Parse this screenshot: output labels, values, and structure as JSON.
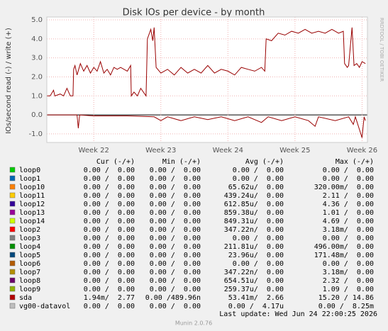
{
  "chart_data": {
    "type": "line",
    "title": "Disk IOs per device - by month",
    "ylabel": "IOs/second read (-) / write (+)",
    "side_text": "RRDTOOL / TOBI OETIKER",
    "xlim": [
      21.3,
      26.08
    ],
    "xticks": [
      {
        "value": 22,
        "label": "Week 22"
      },
      {
        "value": 23,
        "label": "Week 23"
      },
      {
        "value": 24,
        "label": "Week 24"
      },
      {
        "value": 25,
        "label": "Week 25"
      },
      {
        "value": 26,
        "label": "Week 26"
      }
    ],
    "ylim": [
      -1.45,
      5.15
    ],
    "yticks": [
      {
        "value": -1,
        "label": "-1.0"
      },
      {
        "value": 0,
        "label": "0.0"
      },
      {
        "value": 1,
        "label": "1.0"
      },
      {
        "value": 2,
        "label": "2.0"
      },
      {
        "value": 3,
        "label": "3.0"
      },
      {
        "value": 4,
        "label": "4.0"
      },
      {
        "value": 5,
        "label": "5.0"
      }
    ],
    "grid": true,
    "series": [
      {
        "color": "#990000",
        "x": [
          21.3,
          21.35,
          21.4,
          21.42,
          21.5,
          21.55,
          21.6,
          21.65,
          21.69,
          21.7,
          21.72,
          21.75,
          21.8,
          21.85,
          21.9,
          21.95,
          22.0,
          22.05,
          22.1,
          22.15,
          22.2,
          22.25,
          22.3,
          22.35,
          22.4,
          22.5,
          22.55,
          22.56,
          22.6,
          22.65,
          22.7,
          22.78,
          22.8,
          22.85,
          22.88,
          22.9,
          22.93,
          23.0,
          23.1,
          23.2,
          23.3,
          23.4,
          23.5,
          23.6,
          23.7,
          23.8,
          23.9,
          24.0,
          24.1,
          24.2,
          24.3,
          24.4,
          24.5,
          24.55,
          24.57,
          24.65,
          24.75,
          24.85,
          24.95,
          25.05,
          25.15,
          25.25,
          25.35,
          25.45,
          25.55,
          25.65,
          25.72,
          25.74,
          25.78,
          25.8,
          25.85,
          25.88,
          25.92,
          25.96,
          26.0,
          26.05
        ],
        "values": [
          1.0,
          1.0,
          1.3,
          1.0,
          1.1,
          1.0,
          1.4,
          1.0,
          1.0,
          2.4,
          2.6,
          2.1,
          2.7,
          2.3,
          2.6,
          2.2,
          2.5,
          2.3,
          2.8,
          2.2,
          2.4,
          2.1,
          2.5,
          2.4,
          2.5,
          2.3,
          2.6,
          1.0,
          1.2,
          1.0,
          1.4,
          1.0,
          4.0,
          4.5,
          3.9,
          4.6,
          2.5,
          2.2,
          2.4,
          2.1,
          2.5,
          2.2,
          2.4,
          2.2,
          2.6,
          2.2,
          2.4,
          2.3,
          2.1,
          2.5,
          2.4,
          2.3,
          2.5,
          2.3,
          4.0,
          3.9,
          4.3,
          4.2,
          4.4,
          4.3,
          4.5,
          4.3,
          4.4,
          4.3,
          4.5,
          4.3,
          4.4,
          2.7,
          2.5,
          2.6,
          4.6,
          2.6,
          2.7,
          2.5,
          2.8,
          2.7
        ]
      },
      {
        "color": "#990000",
        "x": [
          21.3,
          21.75,
          21.77,
          21.79,
          22.0,
          22.5,
          22.9,
          23.0,
          23.1,
          23.3,
          23.5,
          23.7,
          23.9,
          24.1,
          24.3,
          24.5,
          24.6,
          24.8,
          25.0,
          25.2,
          25.3,
          25.35,
          25.6,
          25.8,
          25.87,
          25.9,
          26.0,
          26.03,
          26.05
        ],
        "values": [
          0,
          0,
          -0.7,
          0,
          -0.05,
          -0.05,
          -0.1,
          -0.3,
          -0.1,
          -0.3,
          -0.1,
          -0.25,
          -0.1,
          -0.3,
          -0.1,
          -0.4,
          -0.1,
          -0.3,
          -0.1,
          -0.3,
          -0.6,
          -0.1,
          -0.3,
          -0.1,
          -0.5,
          -0.1,
          -1.2,
          -0.1,
          -0.3
        ]
      }
    ]
  },
  "table": {
    "headers": [
      "Cur (-/+)",
      "Min (-/+)",
      "Avg (-/+)",
      "Max (-/+)"
    ],
    "rows": [
      {
        "name": "loop0",
        "color": "#00cc00",
        "cells": [
          "0.00 /  0.00",
          "0.00 /  0.00",
          "0.00 /  0.00",
          "0.00 /  0.00"
        ]
      },
      {
        "name": "loop1",
        "color": "#0066b3",
        "cells": [
          "0.00 /  0.00",
          "0.00 /  0.00",
          "0.00 /  0.00",
          "0.00 /  0.00"
        ]
      },
      {
        "name": "loop10",
        "color": "#ff8000",
        "cells": [
          "0.00 /  0.00",
          "0.00 /  0.00",
          "65.62u/  0.00",
          "320.00m/  0.00"
        ]
      },
      {
        "name": "loop11",
        "color": "#ffcc00",
        "cells": [
          "0.00 /  0.00",
          "0.00 /  0.00",
          "439.24u/  0.00",
          "2.11 /  0.00"
        ]
      },
      {
        "name": "loop12",
        "color": "#330099",
        "cells": [
          "0.00 /  0.00",
          "0.00 /  0.00",
          "612.85u/  0.00",
          "4.36 /  0.00"
        ]
      },
      {
        "name": "loop13",
        "color": "#990099",
        "cells": [
          "0.00 /  0.00",
          "0.00 /  0.00",
          "859.38u/  0.00",
          "1.01 /  0.00"
        ]
      },
      {
        "name": "loop14",
        "color": "#ccff00",
        "cells": [
          "0.00 /  0.00",
          "0.00 /  0.00",
          "849.31u/  0.00",
          "4.69 /  0.00"
        ]
      },
      {
        "name": "loop2",
        "color": "#ff0000",
        "cells": [
          "0.00 /  0.00",
          "0.00 /  0.00",
          "347.22n/  0.00",
          "3.18m/  0.00"
        ]
      },
      {
        "name": "loop3",
        "color": "#808080",
        "cells": [
          "0.00 /  0.00",
          "0.00 /  0.00",
          "0.00 /  0.00",
          "0.00 /  0.00"
        ]
      },
      {
        "name": "loop4",
        "color": "#008f00",
        "cells": [
          "0.00 /  0.00",
          "0.00 /  0.00",
          "211.81u/  0.00",
          "496.00m/  0.00"
        ]
      },
      {
        "name": "loop5",
        "color": "#00487d",
        "cells": [
          "0.00 /  0.00",
          "0.00 /  0.00",
          "23.96u/  0.00",
          "171.48m/  0.00"
        ]
      },
      {
        "name": "loop6",
        "color": "#b35a00",
        "cells": [
          "0.00 /  0.00",
          "0.00 /  0.00",
          "0.00 /  0.00",
          "0.00 /  0.00"
        ]
      },
      {
        "name": "loop7",
        "color": "#b38f00",
        "cells": [
          "0.00 /  0.00",
          "0.00 /  0.00",
          "347.22n/  0.00",
          "3.18m/  0.00"
        ]
      },
      {
        "name": "loop8",
        "color": "#6b006b",
        "cells": [
          "0.00 /  0.00",
          "0.00 /  0.00",
          "654.51u/  0.00",
          "2.32 /  0.00"
        ]
      },
      {
        "name": "loop9",
        "color": "#8fb300",
        "cells": [
          "0.00 /  0.00",
          "0.00 /  0.00",
          "259.37u/  0.00",
          "1.09 /  0.00"
        ]
      },
      {
        "name": "sda",
        "color": "#b30000",
        "cells": [
          "1.94m/  2.77",
          "0.00 /489.96n",
          "53.41m/  2.66",
          "15.20 / 14.86"
        ]
      },
      {
        "name": "vg00-datavol",
        "color": "#bebebe",
        "cells": [
          "0.00 /  0.00",
          "0.00 /  0.00",
          "0.00 /  4.17u",
          "0.00 /  8.25m"
        ]
      }
    ]
  },
  "last_update": "Last update: Wed Jun 24 22:00:25 2026",
  "footer": "Munin 2.0.76"
}
